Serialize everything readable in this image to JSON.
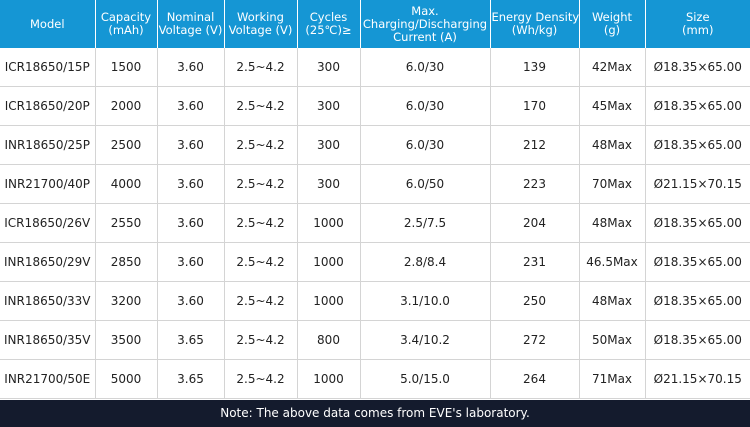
{
  "headers": [
    [
      "Model"
    ],
    [
      "Capacity",
      "(mAh)"
    ],
    [
      "Nominal",
      "Voltage (V)"
    ],
    [
      "Working",
      "Voltage (V)"
    ],
    [
      "Cycles",
      "(25℃)≥"
    ],
    [
      "Max.",
      "Charging/Discharging",
      "Current (A)"
    ],
    [
      "Energy Density",
      "(Wh/kg)"
    ],
    [
      "Weight",
      "(g)"
    ],
    [
      "Size",
      "(mm)"
    ]
  ],
  "rows": [
    [
      "ICR18650/15P",
      "1500",
      "3.60",
      "2.5~4.2",
      "300",
      "6.0/30",
      "139",
      "42Max",
      "Ø18.35×65.00"
    ],
    [
      "ICR18650/20P",
      "2000",
      "3.60",
      "2.5~4.2",
      "300",
      "6.0/30",
      "170",
      "45Max",
      "Ø18.35×65.00"
    ],
    [
      "INR18650/25P",
      "2500",
      "3.60",
      "2.5~4.2",
      "300",
      "6.0/30",
      "212",
      "48Max",
      "Ø18.35×65.00"
    ],
    [
      "INR21700/40P",
      "4000",
      "3.60",
      "2.5~4.2",
      "300",
      "6.0/50",
      "223",
      "70Max",
      "Ø21.15×70.15"
    ],
    [
      "ICR18650/26V",
      "2550",
      "3.60",
      "2.5~4.2",
      "1000",
      "2.5/7.5",
      "204",
      "48Max",
      "Ø18.35×65.00"
    ],
    [
      "INR18650/29V",
      "2850",
      "3.60",
      "2.5~4.2",
      "1000",
      "2.8/8.4",
      "231",
      "46.5Max",
      "Ø18.35×65.00"
    ],
    [
      "INR18650/33V",
      "3200",
      "3.60",
      "2.5~4.2",
      "1000",
      "3.1/10.0",
      "250",
      "48Max",
      "Ø18.35×65.00"
    ],
    [
      "INR18650/35V",
      "3500",
      "3.65",
      "2.5~4.2",
      "800",
      "3.4/10.2",
      "272",
      "50Max",
      "Ø18.35×65.00"
    ],
    [
      "INR21700/50E",
      "5000",
      "3.65",
      "2.5~4.2",
      "1000",
      "5.0/15.0",
      "264",
      "71Max",
      "Ø21.15×70.15"
    ]
  ],
  "note": "Note: The above data comes from EVE's laboratory.",
  "colors": {
    "header_bg": "#1596d4",
    "header_text": "#ffffff",
    "note_bg": "#141b2d",
    "grid": "#d4d4d4"
  }
}
